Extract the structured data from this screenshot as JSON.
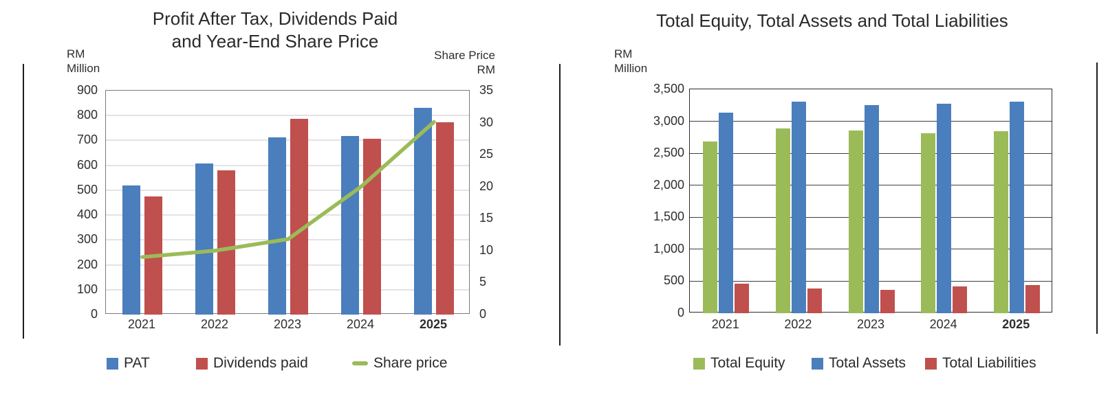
{
  "page": {
    "background": "#ffffff",
    "text_color": "#2e2d30"
  },
  "chart_data": [
    {
      "type": "bar",
      "subtype": "clustered-column-with-line-combo",
      "title": "Profit After Tax, Dividends Paid and Year-End Share Price",
      "title_lines": [
        "Profit After Tax, Dividends Paid",
        "and Year-End Share Price"
      ],
      "categories": [
        "2021",
        "2022",
        "2023",
        "2024",
        "2025"
      ],
      "bold_category": "2025",
      "series": [
        {
          "name": "PAT",
          "type": "bar",
          "axis": "left",
          "color": "#4a7ebc",
          "values": [
            520,
            607,
            713,
            718,
            830
          ]
        },
        {
          "name": "Dividends paid",
          "type": "bar",
          "axis": "left",
          "color": "#c0504d",
          "values": [
            475,
            580,
            788,
            708,
            773
          ]
        },
        {
          "name": "Share price",
          "type": "line",
          "axis": "right",
          "color": "#9bbb59",
          "values": [
            9.0,
            10.0,
            11.8,
            20.0,
            30.1
          ]
        }
      ],
      "left_axis": {
        "label": "RM Million",
        "label_lines": [
          "RM",
          "Million"
        ],
        "min": 0,
        "max": 900,
        "step": 100,
        "ticks": [
          "900",
          "800",
          "700",
          "600",
          "500",
          "400",
          "300",
          "200",
          "100",
          "0"
        ]
      },
      "right_axis": {
        "label": "Share Price RM",
        "label_lines": [
          "Share Price",
          "RM"
        ],
        "min": 0,
        "max": 35,
        "step": 5,
        "ticks": [
          "35",
          "30",
          "25",
          "20",
          "15",
          "10",
          "5",
          "0"
        ]
      },
      "grid": true,
      "legend_position": "bottom"
    },
    {
      "type": "bar",
      "subtype": "clustered-column",
      "title": "Total Equity, Total Assets and Total Liabilities",
      "categories": [
        "2021",
        "2022",
        "2023",
        "2024",
        "2025"
      ],
      "bold_category": "2025",
      "series": [
        {
          "name": "Total Equity",
          "type": "bar",
          "axis": "left",
          "color": "#9bbb59",
          "values": [
            2680,
            2890,
            2860,
            2810,
            2840
          ]
        },
        {
          "name": "Total Assets",
          "type": "bar",
          "axis": "left",
          "color": "#4a7ebc",
          "values": [
            3140,
            3310,
            3250,
            3270,
            3310
          ]
        },
        {
          "name": "Total Liabilities",
          "type": "bar",
          "axis": "left",
          "color": "#c0504d",
          "values": [
            465,
            390,
            360,
            415,
            445
          ]
        }
      ],
      "left_axis": {
        "label": "RM Million",
        "label_lines": [
          "RM",
          "Million"
        ],
        "min": 0,
        "max": 3500,
        "step": 500,
        "ticks": [
          "3,500",
          "3,000",
          "2,500",
          "2,000",
          "1,500",
          "1,000",
          "500",
          "0"
        ]
      },
      "grid": true,
      "legend_position": "bottom"
    }
  ]
}
